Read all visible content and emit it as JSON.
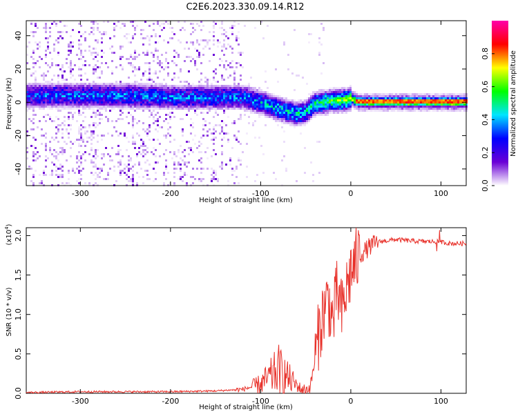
{
  "title": "C2E6.2023.330.09.14.R12",
  "chart_data": [
    {
      "type": "heatmap",
      "xlabel": "Height of straight line (km)",
      "ylabel": "Frequency (Hz)",
      "xlim": [
        -360,
        128
      ],
      "ylim": [
        -50,
        49
      ],
      "xticks": [
        -300,
        -200,
        -100,
        0,
        100
      ],
      "yticks": [
        -40,
        -20,
        0,
        20,
        40
      ],
      "colorbar": {
        "label": "Normalized spectral amplitude",
        "range": [
          0,
          1
        ],
        "ticks": [
          "0.0",
          "0.2",
          "0.4",
          "0.6",
          "0.8"
        ],
        "colormap": [
          "#ffffff",
          "#6a00d6",
          "#0000ff",
          "#00e5ff",
          "#00ff00",
          "#ffff00",
          "#ff0000",
          "#ff00aa"
        ]
      },
      "ridge": {
        "x": [
          -360,
          -300,
          -250,
          -200,
          -150,
          -120,
          -100,
          -80,
          -60,
          -50,
          -40,
          -30,
          -20,
          -10,
          0,
          10,
          50,
          100,
          128
        ],
        "y": [
          4,
          4,
          4,
          3,
          3,
          3,
          0,
          -4,
          -7,
          -6,
          -1,
          0,
          1,
          1,
          2,
          0,
          0,
          0,
          0
        ],
        "amplitude": [
          0.3,
          0.35,
          0.35,
          0.35,
          0.35,
          0.35,
          0.4,
          0.45,
          0.45,
          0.45,
          0.5,
          0.55,
          0.6,
          0.6,
          0.65,
          0.8,
          0.8,
          0.8,
          0.8
        ]
      },
      "grid": false
    },
    {
      "type": "line",
      "xlabel": "Height of straight line (km)",
      "ylabel": "SNR (10 * v/v)",
      "scale_label": "(x10",
      "scale_exp": "4",
      "xlim": [
        -360,
        128
      ],
      "ylim": [
        0,
        2.1
      ],
      "xticks": [
        -300,
        -200,
        -100,
        0,
        100
      ],
      "yticks": [
        "0.0",
        "0.5",
        "1.0",
        "1.5",
        "2.0"
      ],
      "color": "#e8312a",
      "series": [
        {
          "x": [
            -360,
            -300,
            -200,
            -150,
            -120,
            -110,
            -100,
            -90,
            -80,
            -70,
            -60,
            -55,
            -50,
            -45,
            -40,
            -35,
            -30,
            -25,
            -20,
            -15,
            -10,
            -5,
            0,
            10,
            20,
            30,
            50,
            70,
            100,
            110,
            128
          ],
          "values": [
            0.01,
            0.02,
            0.02,
            0.03,
            0.05,
            0.08,
            0.12,
            0.2,
            0.3,
            0.2,
            0.1,
            0.05,
            0.04,
            0.08,
            0.4,
            0.8,
            1.05,
            1.2,
            0.9,
            1.3,
            1.0,
            1.3,
            1.55,
            1.75,
            1.85,
            1.92,
            1.95,
            1.93,
            1.92,
            1.9,
            1.9
          ]
        }
      ],
      "grid": false
    }
  ]
}
